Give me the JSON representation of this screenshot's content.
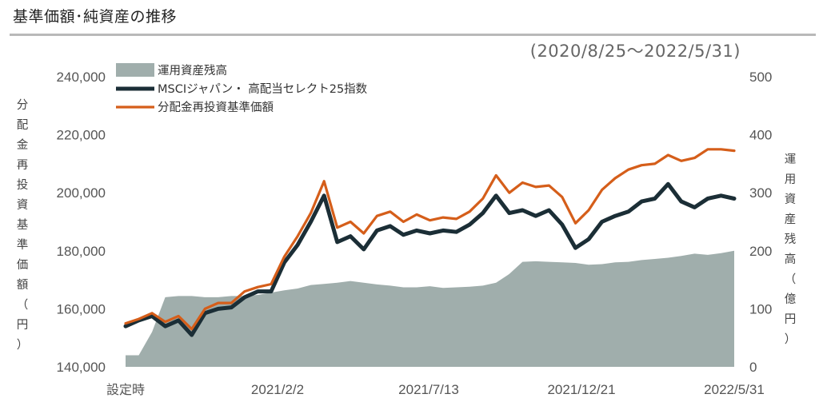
{
  "header": {
    "title": "基準価額･純資産の推移",
    "period": "(2020/8/25～2022/5/31)"
  },
  "colors": {
    "nav": "#d55e1a",
    "index": "#1b2e36",
    "assets": "#a0aeac"
  },
  "chart_data": {
    "type": "line",
    "title": "基準価額･純資産の推移",
    "subtitle": "(2020/8/25～2022/5/31)",
    "ylabel": "分配金再投資基準価額（円）",
    "y2label": "運用資産残高（億円）",
    "ylim": [
      140000,
      240000
    ],
    "y2lim": [
      0,
      500
    ],
    "yticks": [
      "240,000",
      "220,000",
      "200,000",
      "180,000",
      "160,000",
      "140,000"
    ],
    "y2ticks": [
      "500",
      "400",
      "300",
      "200",
      "100",
      "0"
    ],
    "xticks": [
      "設定時",
      "2021/2/2",
      "2021/7/13",
      "2021/12/21",
      "2022/5/31"
    ],
    "legend": [
      "運用資産残高",
      "MSCIジャパン・ 高配当セレクト25指数",
      "分配金再投資基準価額"
    ],
    "legend_position": "top-left",
    "x": [
      "2020-08-25",
      "2020-09-08",
      "2020-09-22",
      "2020-10-06",
      "2020-10-20",
      "2020-11-03",
      "2020-11-17",
      "2020-12-01",
      "2020-12-15",
      "2020-12-29",
      "2021-01-12",
      "2021-01-26",
      "2021-02-09",
      "2021-02-23",
      "2021-03-09",
      "2021-03-23",
      "2021-04-06",
      "2021-04-20",
      "2021-05-04",
      "2021-05-18",
      "2021-06-01",
      "2021-06-15",
      "2021-06-29",
      "2021-07-13",
      "2021-07-27",
      "2021-08-10",
      "2021-08-24",
      "2021-09-07",
      "2021-09-21",
      "2021-10-05",
      "2021-10-19",
      "2021-11-02",
      "2021-11-16",
      "2021-11-30",
      "2021-12-14",
      "2021-12-28",
      "2022-01-11",
      "2022-01-25",
      "2022-02-08",
      "2022-02-22",
      "2022-03-08",
      "2022-03-22",
      "2022-04-05",
      "2022-04-19",
      "2022-05-03",
      "2022-05-17",
      "2022-05-31"
    ],
    "series": [
      {
        "name": "運用資産残高",
        "axis": "right",
        "values": [
          20,
          20,
          60,
          120,
          122,
          122,
          120,
          120,
          122,
          122,
          124,
          128,
          132,
          135,
          141,
          143,
          145,
          148,
          145,
          142,
          140,
          137,
          137,
          139,
          136,
          137,
          138,
          140,
          145,
          160,
          181,
          182,
          181,
          180,
          179,
          176,
          177,
          180,
          181,
          184,
          186,
          188,
          191,
          195,
          193,
          196,
          200
        ]
      },
      {
        "name": "MSCIジャパン・ 高配当セレクト25指数",
        "axis": "left",
        "values": [
          154000,
          156000,
          157500,
          154000,
          156000,
          151000,
          158500,
          160000,
          160500,
          164000,
          166000,
          166000,
          176000,
          182000,
          190000,
          199000,
          183000,
          185000,
          180500,
          187000,
          188500,
          185500,
          187000,
          186000,
          187000,
          186500,
          189000,
          193000,
          199000,
          193000,
          194000,
          192000,
          194000,
          189000,
          181000,
          184000,
          190000,
          192000,
          193500,
          197000,
          198000,
          203000,
          197000,
          195000,
          198000,
          199000,
          198000
        ]
      },
      {
        "name": "分配金再投資基準価額",
        "axis": "left",
        "values": [
          155000,
          156500,
          158500,
          155500,
          157500,
          153000,
          160000,
          162000,
          162000,
          166000,
          167500,
          168500,
          178000,
          185000,
          193000,
          204000,
          188000,
          190000,
          186000,
          192000,
          193500,
          190000,
          192500,
          190500,
          191500,
          191000,
          193500,
          198000,
          206000,
          200000,
          203500,
          202000,
          202500,
          198500,
          189500,
          194000,
          201000,
          205000,
          208000,
          209500,
          210000,
          213000,
          211000,
          212000,
          215000,
          215000,
          214500
        ]
      }
    ]
  }
}
